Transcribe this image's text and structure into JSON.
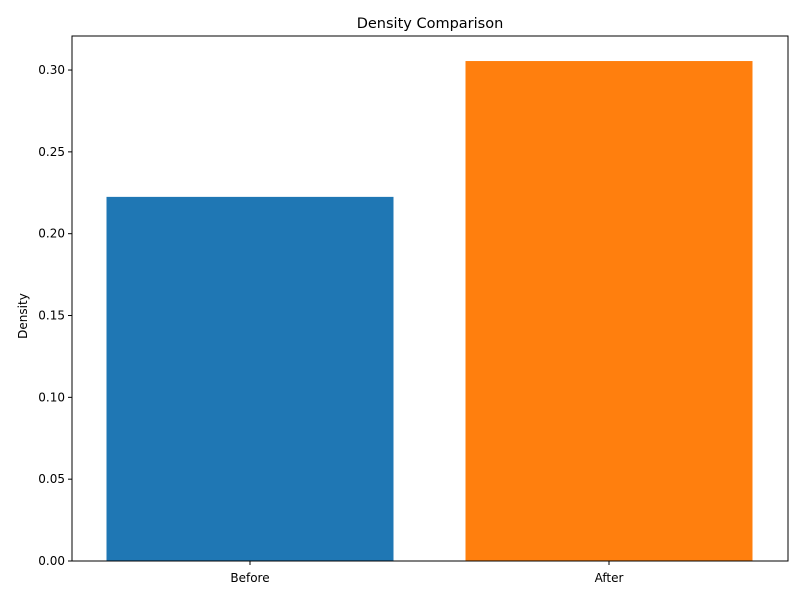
{
  "chart_data": {
    "type": "bar",
    "title": "Density Comparison",
    "xlabel": "",
    "ylabel": "Density",
    "categories": [
      "Before",
      "After"
    ],
    "values": [
      0.2225,
      0.3055
    ],
    "colors": [
      "#1f77b4",
      "#ff7f0e"
    ],
    "ylim": [
      0,
      0.3208
    ],
    "yticks": [
      0.0,
      0.05,
      0.1,
      0.15,
      0.2,
      0.25,
      0.3
    ],
    "ytick_labels": [
      "0.00",
      "0.05",
      "0.10",
      "0.15",
      "0.20",
      "0.25",
      "0.30"
    ],
    "grid": false,
    "legend": "none"
  }
}
